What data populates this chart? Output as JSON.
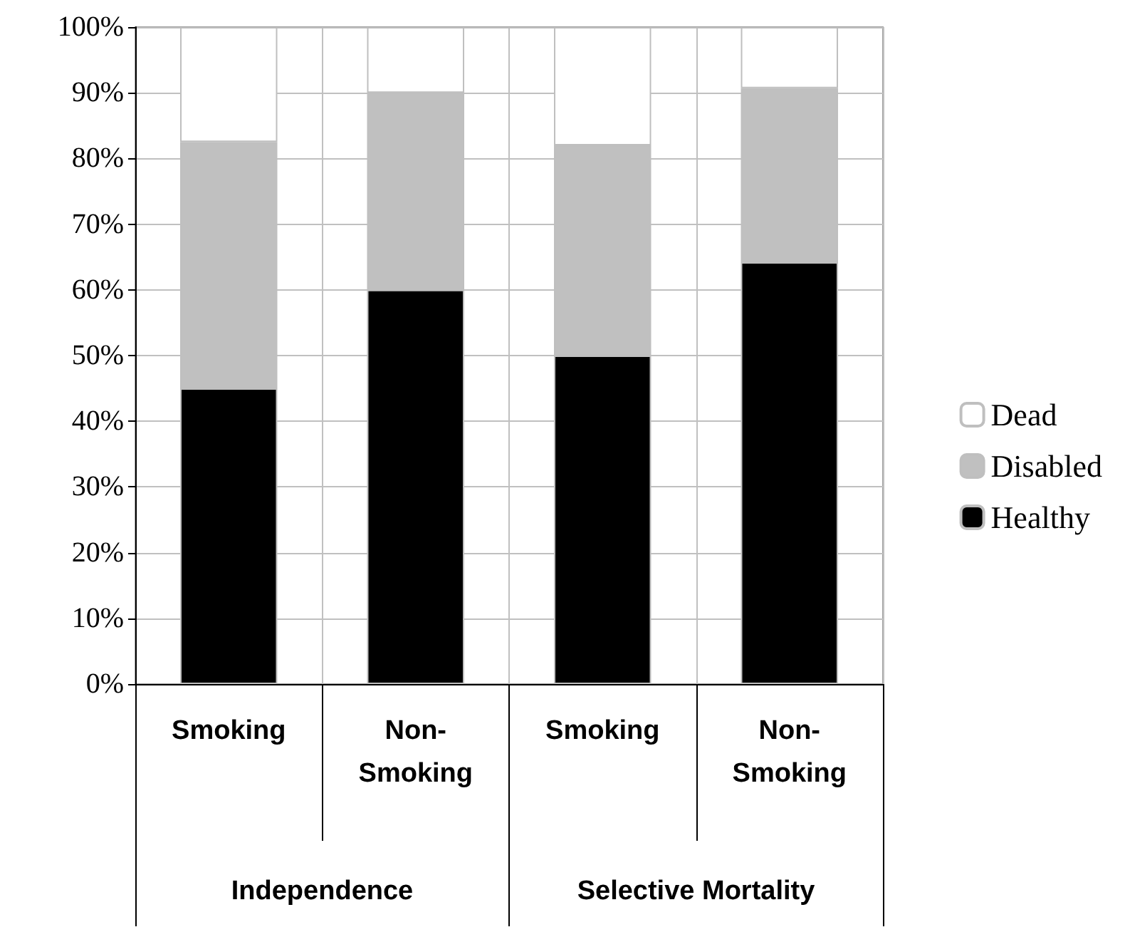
{
  "chart_data": {
    "type": "bar",
    "stacked": true,
    "categories": [
      "Smoking",
      "Non-Smoking",
      "Smoking",
      "Non-Smoking"
    ],
    "annotations": [
      "Independence",
      "Selective Mortality"
    ],
    "series": [
      {
        "name": "Healthy",
        "color": "#000000",
        "values": [
          45,
          60,
          50,
          64.2
        ]
      },
      {
        "name": "Disabled",
        "color": "#c0c0c0",
        "values": [
          37.5,
          30,
          32,
          26.5
        ]
      },
      {
        "name": "Dead",
        "color": "#ffffff",
        "values": [
          17.5,
          10,
          18,
          9.3
        ]
      }
    ],
    "ylim": [
      0,
      100
    ],
    "yticks": [
      {
        "value": 0,
        "label": "0%"
      },
      {
        "value": 10,
        "label": "10%"
      },
      {
        "value": 20,
        "label": "20%"
      },
      {
        "value": 30,
        "label": "30%"
      },
      {
        "value": 40,
        "label": "40%"
      },
      {
        "value": 50,
        "label": "50%"
      },
      {
        "value": 60,
        "label": "60%"
      },
      {
        "value": 70,
        "label": "70%"
      },
      {
        "value": 80,
        "label": "80%"
      },
      {
        "value": 90,
        "label": "90%"
      },
      {
        "value": 100,
        "label": "100%"
      }
    ],
    "grid": true,
    "legend": "right"
  }
}
